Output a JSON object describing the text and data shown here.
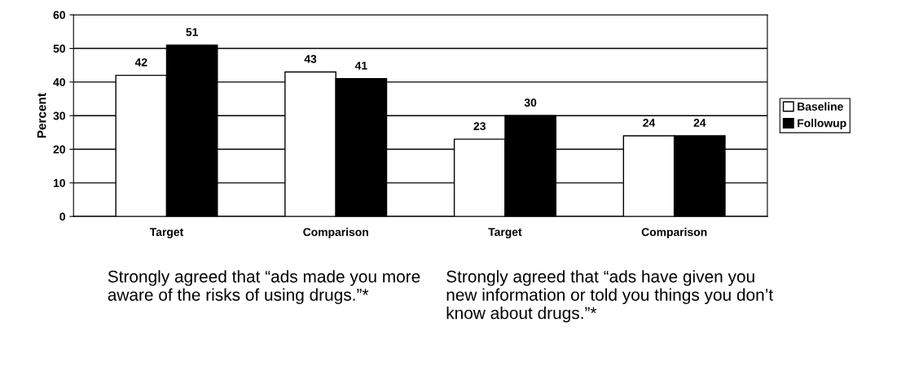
{
  "chart_data": {
    "type": "bar",
    "ylabel": "Percent",
    "categories": [
      "Target",
      "Comparison",
      "Target",
      "Comparison"
    ],
    "series": [
      {
        "name": "Baseline",
        "color": "#ffffff",
        "values": [
          42,
          43,
          23,
          24
        ]
      },
      {
        "name": "Followup",
        "color": "#000000",
        "values": [
          51,
          41,
          30,
          24
        ]
      }
    ],
    "ylim": [
      0,
      60
    ],
    "yticks": [
      0,
      10,
      20,
      30,
      40,
      50,
      60
    ],
    "grid": "y",
    "legend": "right",
    "data_labels": true,
    "annotations": [
      "Strongly agreed that “ads made you more aware of the risks of using drugs.”*",
      "Strongly agreed that “ads have given you new information or told you things you don’t know about drugs.”*"
    ]
  }
}
